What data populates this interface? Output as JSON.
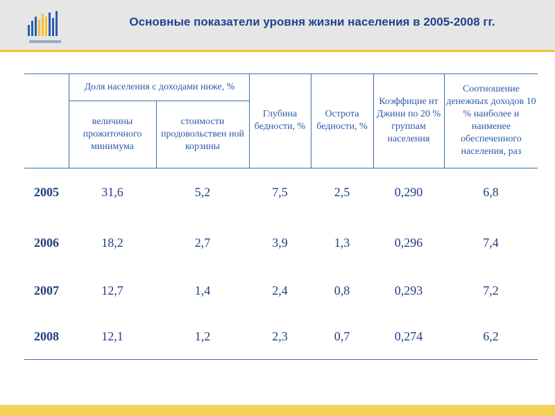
{
  "header": {
    "title": "Основные показатели уровня жизни населения  в 2005-2008 гг."
  },
  "table": {
    "group_header": "Доля населения с доходами ниже, %",
    "columns": [
      "величины прожиточного минимума",
      "стоимости продовольствен ной корзины",
      "Глубина бедности, %",
      "Острота бедности, %",
      "Коэффицие нт Джини по 20 % группам населения",
      "Соотношение денежных доходов 10 % наиболее и наименее обеспеченного населения, раз"
    ],
    "rows": [
      [
        "2005",
        "31,6",
        "5,2",
        "7,5",
        "2,5",
        "0,290",
        "6,8"
      ],
      [
        "2006",
        "18,2",
        "2,7",
        "3,9",
        "1,3",
        "0,296",
        "7,4"
      ],
      [
        "2007",
        "12,7",
        "1,4",
        "2,4",
        "0,8",
        "0,293",
        "7,2"
      ],
      [
        "2008",
        "12,1",
        "1,2",
        "2,3",
        "0,7",
        "0,274",
        "6,2"
      ]
    ]
  }
}
